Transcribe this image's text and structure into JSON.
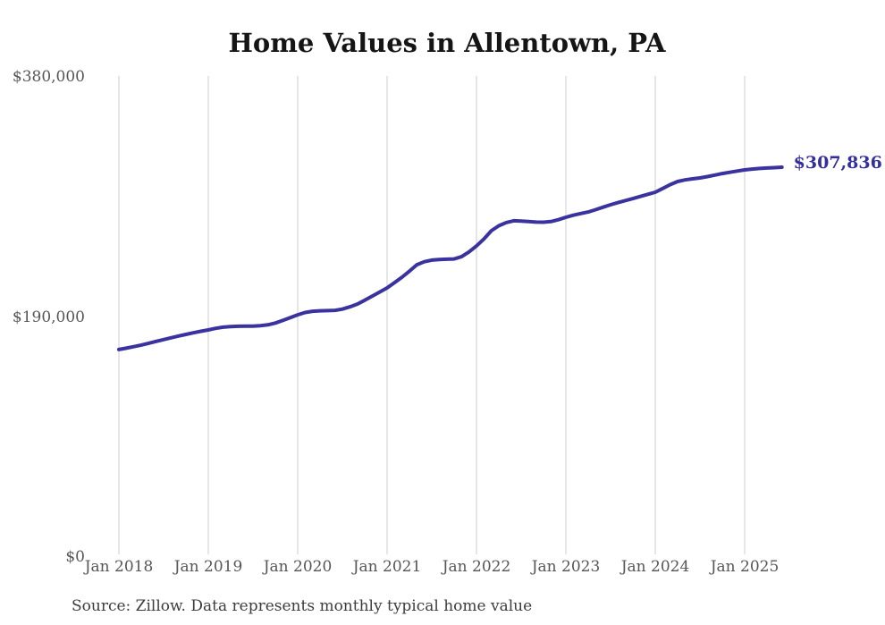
{
  "chart": {
    "title": "Home Values in Allentown, PA",
    "annotation": "$307,836",
    "source": "Source: Zillow. Data represents monthly typical home value",
    "colors": {
      "line": "#39329f",
      "annotation": "#332f9e",
      "grid": "#cccccc",
      "tick_label": "#565656",
      "title": "#151515",
      "source": "#3d3d3d",
      "background": "#ffffff"
    }
  },
  "chart_data": {
    "type": "line",
    "title": "Home Values in Allentown, PA",
    "xlabel": "",
    "ylabel": "",
    "x_start": "2018-01",
    "x_interval": "month",
    "x_tick_labels": [
      "Jan 2018",
      "Jan 2019",
      "Jan 2020",
      "Jan 2021",
      "Jan 2022",
      "Jan 2023",
      "Jan 2024",
      "Jan 2025"
    ],
    "y_ticks": [
      {
        "label": "$0",
        "value": 0
      },
      {
        "label": "$190,000",
        "value": 190000
      },
      {
        "label": "$380,000",
        "value": 380000
      }
    ],
    "ylim": [
      0,
      380000
    ],
    "grid": "vertical-only",
    "legend": "none",
    "latest_value": 307836,
    "latest_label": "$307,836",
    "series": [
      {
        "name": "Typical home value",
        "values": [
          163500,
          164600,
          165800,
          167100,
          168500,
          170000,
          171400,
          172800,
          174200,
          175500,
          176800,
          178000,
          179000,
          180300,
          181200,
          181700,
          181900,
          182000,
          182100,
          182400,
          183100,
          184500,
          186500,
          188800,
          191000,
          192800,
          193800,
          194200,
          194300,
          194500,
          195500,
          197300,
          199500,
          202500,
          205800,
          209000,
          212300,
          216500,
          220800,
          225500,
          230600,
          233000,
          234300,
          234800,
          235000,
          235200,
          237000,
          240800,
          245500,
          251000,
          257600,
          261500,
          264000,
          265400,
          265200,
          264800,
          264400,
          264300,
          264800,
          266300,
          268200,
          269800,
          271200,
          272400,
          274200,
          276200,
          278100,
          279800,
          281400,
          283000,
          284700,
          286400,
          288000,
          291000,
          294000,
          296500,
          297800,
          298600,
          299300,
          300400,
          301600,
          302800,
          303800,
          304800,
          305700,
          306300,
          306800,
          307200,
          307500,
          307836
        ]
      }
    ]
  }
}
